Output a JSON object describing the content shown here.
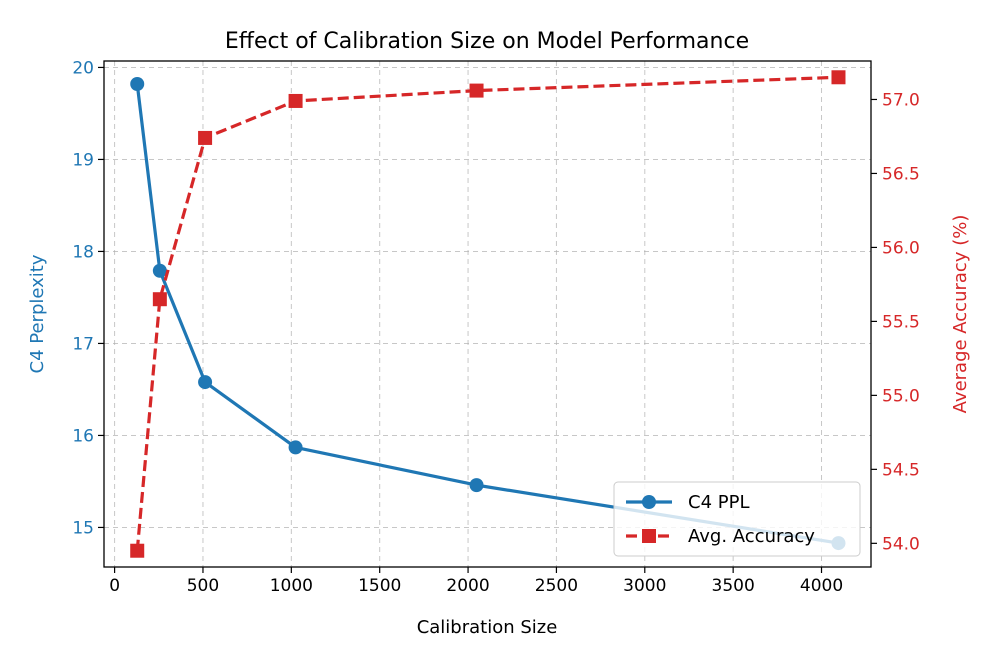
{
  "chart_data": {
    "type": "line",
    "title": "Effect of Calibration Size on Model Performance",
    "xlabel": "Calibration Size",
    "ylabel_left": "C4 Perplexity",
    "ylabel_right": "Average Accuracy (%)",
    "x": [
      128,
      256,
      512,
      1024,
      2048,
      4096
    ],
    "xlim": [
      -60,
      4280
    ],
    "ylim_left": [
      14.57,
      20.07
    ],
    "ylim_right": [
      53.84,
      57.26
    ],
    "xticks": [
      0,
      500,
      1000,
      1500,
      2000,
      2500,
      3000,
      3500,
      4000
    ],
    "yticks_left": [
      15,
      16,
      17,
      18,
      19,
      20
    ],
    "yticks_right": [
      54.0,
      54.5,
      55.0,
      55.5,
      56.0,
      56.5,
      57.0
    ],
    "grid": true,
    "legend_position": "lower-right",
    "series": [
      {
        "name": "C4 PPL",
        "axis": "left",
        "color": "#1f77b4",
        "marker": "circle",
        "linestyle": "solid",
        "values": [
          19.82,
          17.79,
          16.58,
          15.87,
          15.46,
          14.83
        ]
      },
      {
        "name": "Avg. Accuracy",
        "axis": "right",
        "color": "#d62728",
        "marker": "square",
        "linestyle": "dashed",
        "values": [
          53.95,
          55.65,
          56.74,
          56.99,
          57.06,
          57.15
        ]
      }
    ]
  }
}
